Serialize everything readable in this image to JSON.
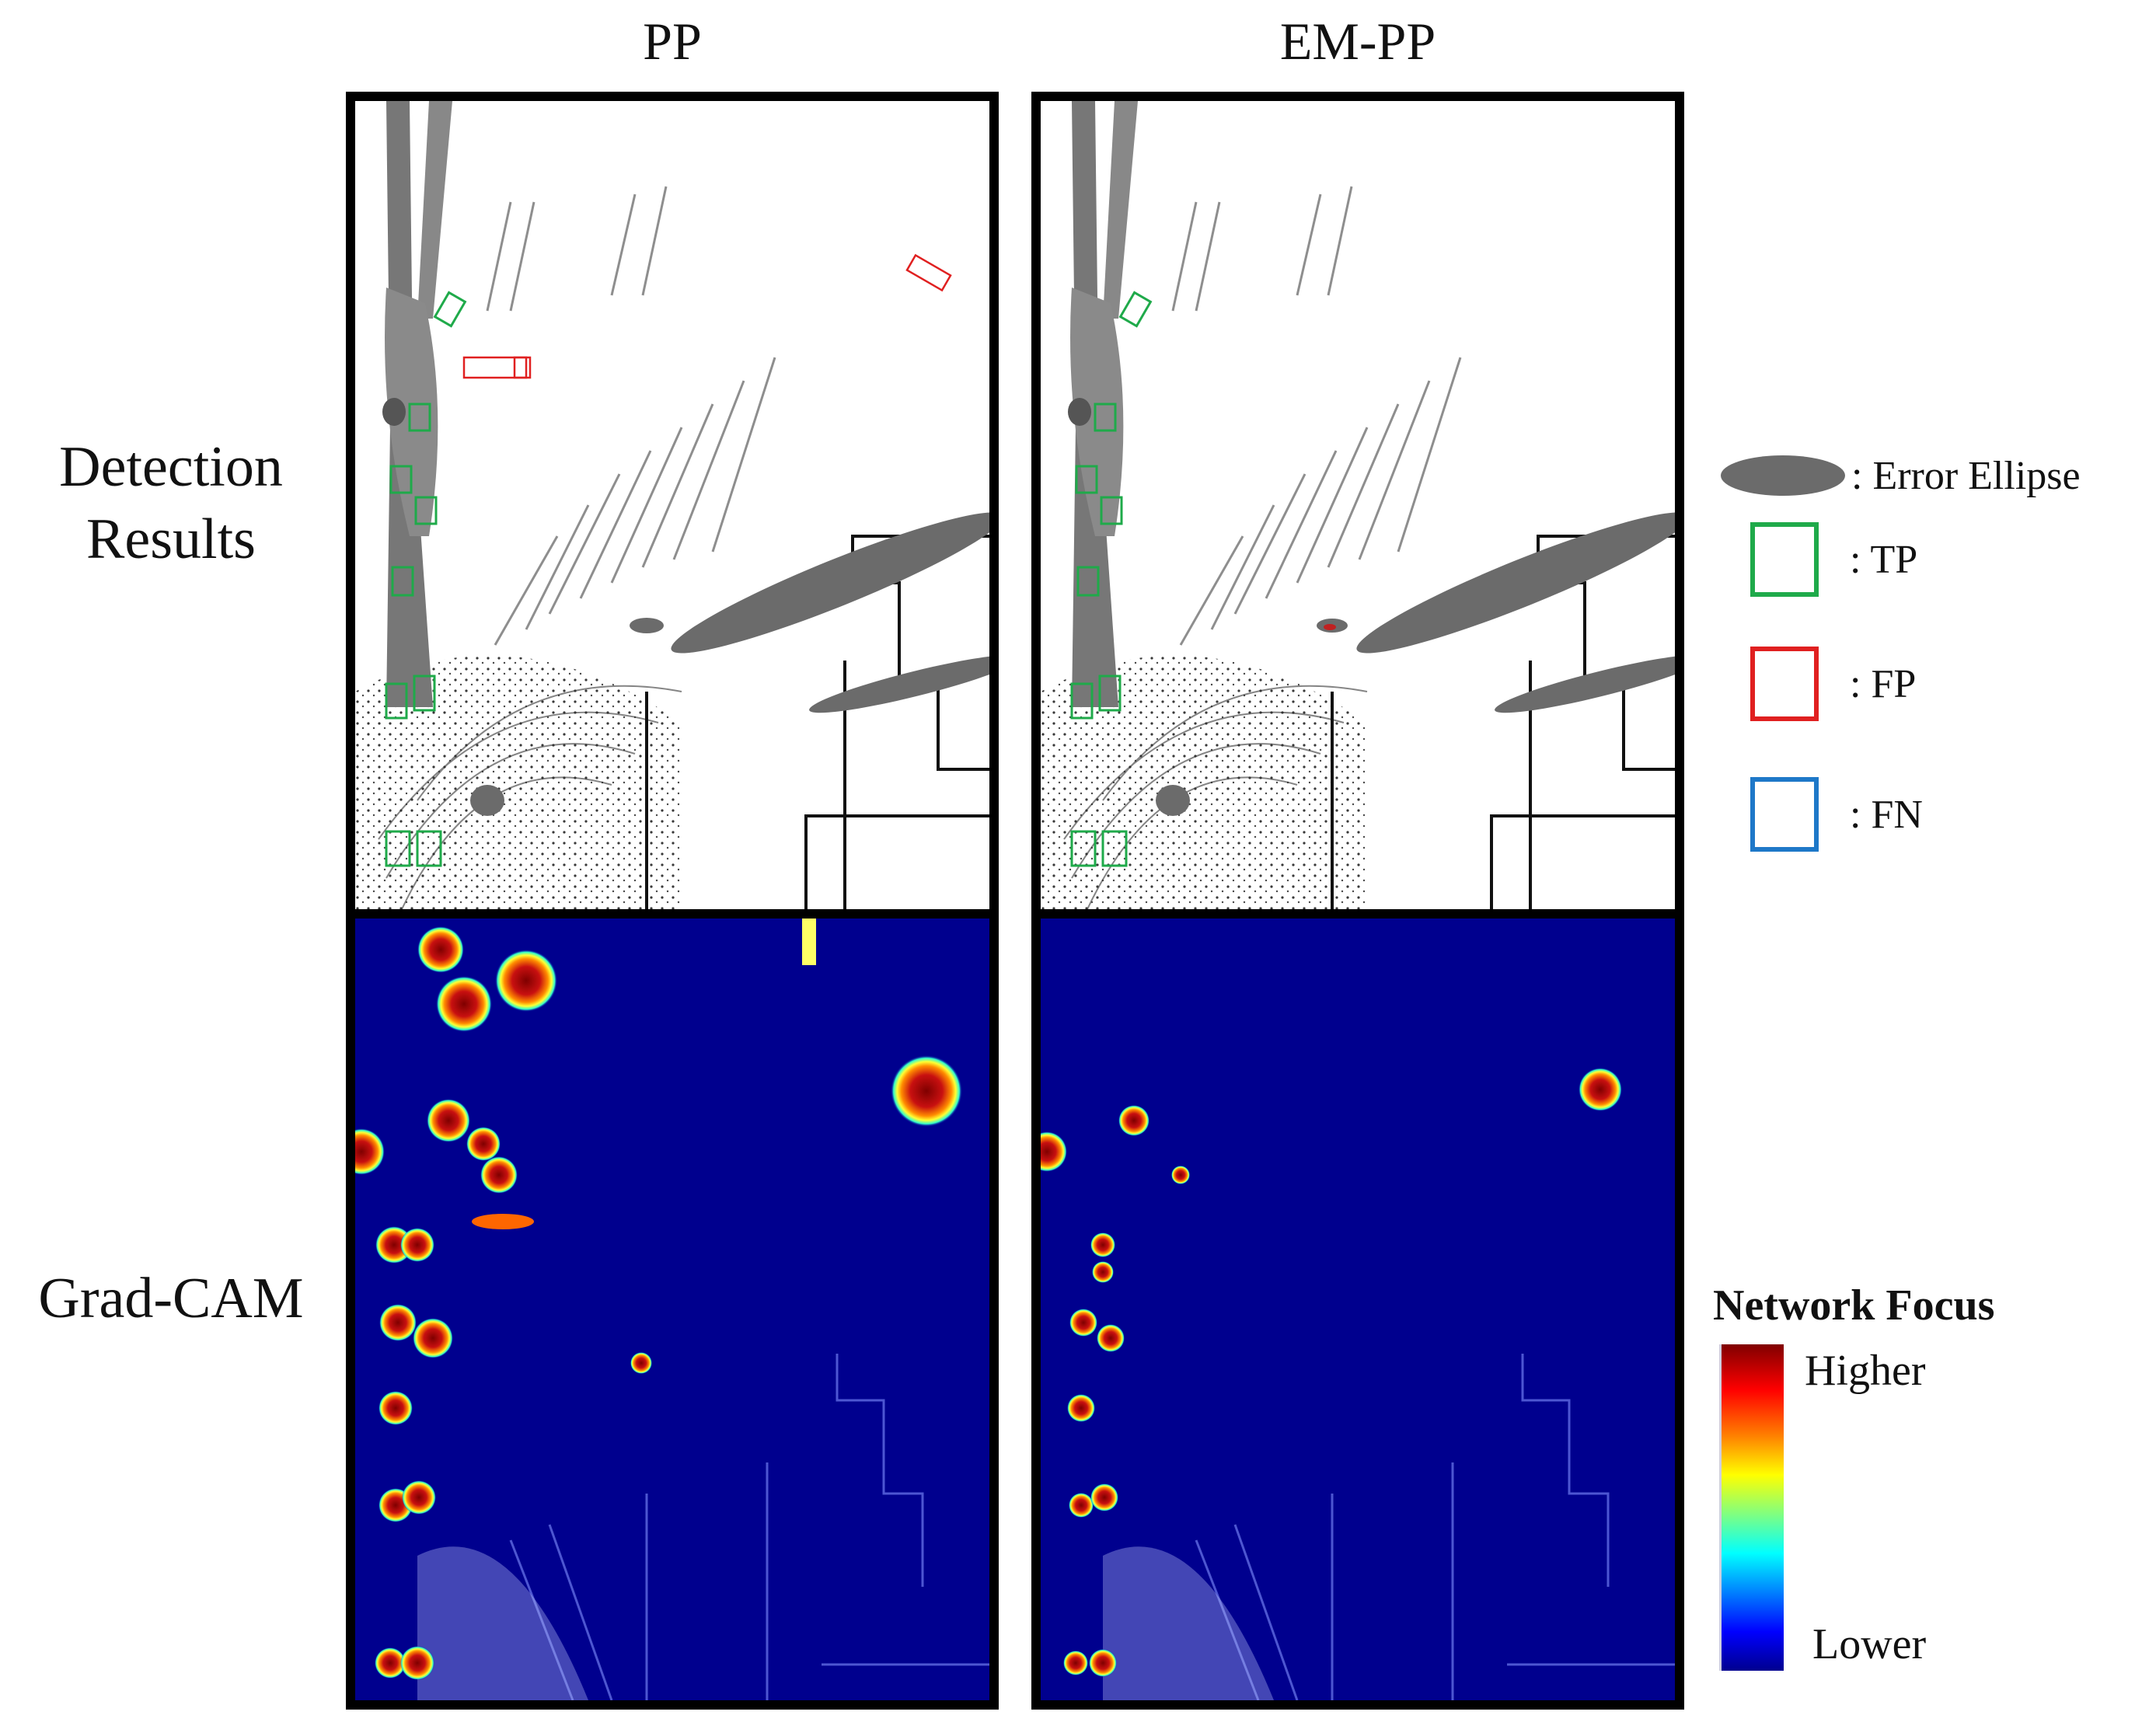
{
  "columns": [
    {
      "id": "pp",
      "title": "PP"
    },
    {
      "id": "empp",
      "title": "EM-PP"
    }
  ],
  "rows": {
    "detection_label_line1": "Detection",
    "detection_label_line2": "Results",
    "gradcam_label": "Grad-CAM"
  },
  "legend": {
    "ellipse_text": ": Error Ellipse",
    "tp_text": ": TP",
    "fp_text": ": FP",
    "fn_text": ": FN",
    "colors": {
      "tp": "#1faa4a",
      "fp": "#e02020",
      "fn": "#1e78c8",
      "ellipse": "#6b6b6b"
    }
  },
  "colorbar": {
    "title": "Network Focus",
    "high_label": "Higher",
    "low_label": "Lower",
    "colormap": "jet"
  }
}
